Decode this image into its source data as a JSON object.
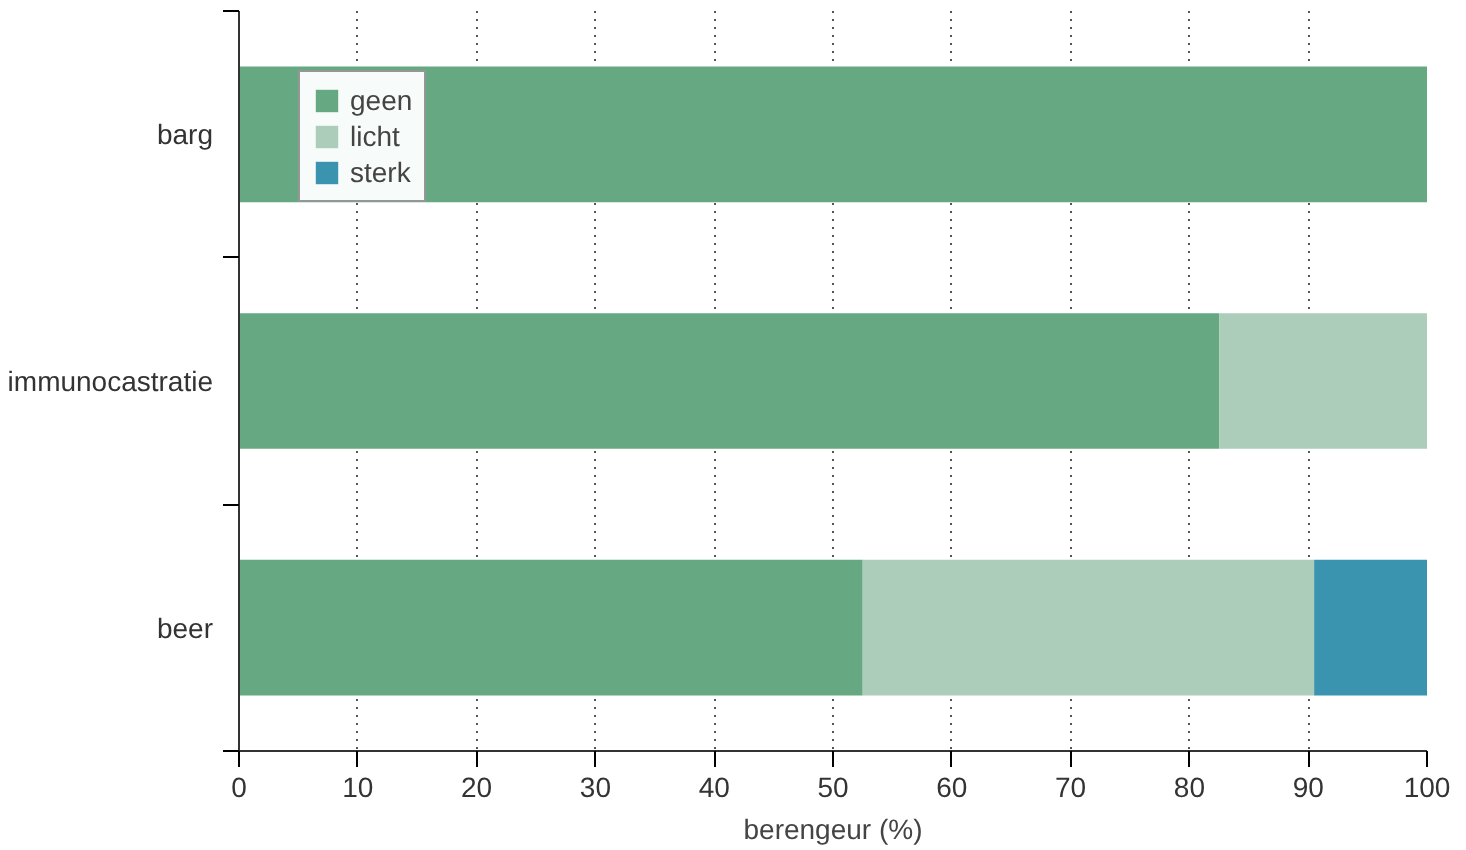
{
  "chart_data": {
    "type": "bar",
    "orientation": "horizontal",
    "stacked": true,
    "xlabel": "berengeur (%)",
    "categories": [
      "barg",
      "immunocastratie",
      "beer"
    ],
    "series": [
      {
        "name": "geen",
        "color": "#66a882",
        "values": [
          100,
          82.5,
          52.5
        ]
      },
      {
        "name": "licht",
        "color": "#abcdb9",
        "values": [
          0,
          17.5,
          38
        ]
      },
      {
        "name": "sterk",
        "color": "#3a94b0",
        "values": [
          0,
          0,
          9.5
        ]
      }
    ],
    "xlim": [
      0,
      100
    ],
    "xticks": [
      0,
      10,
      20,
      30,
      40,
      50,
      60,
      70,
      80,
      90,
      100
    ],
    "grid": "x",
    "legend": "top left"
  }
}
